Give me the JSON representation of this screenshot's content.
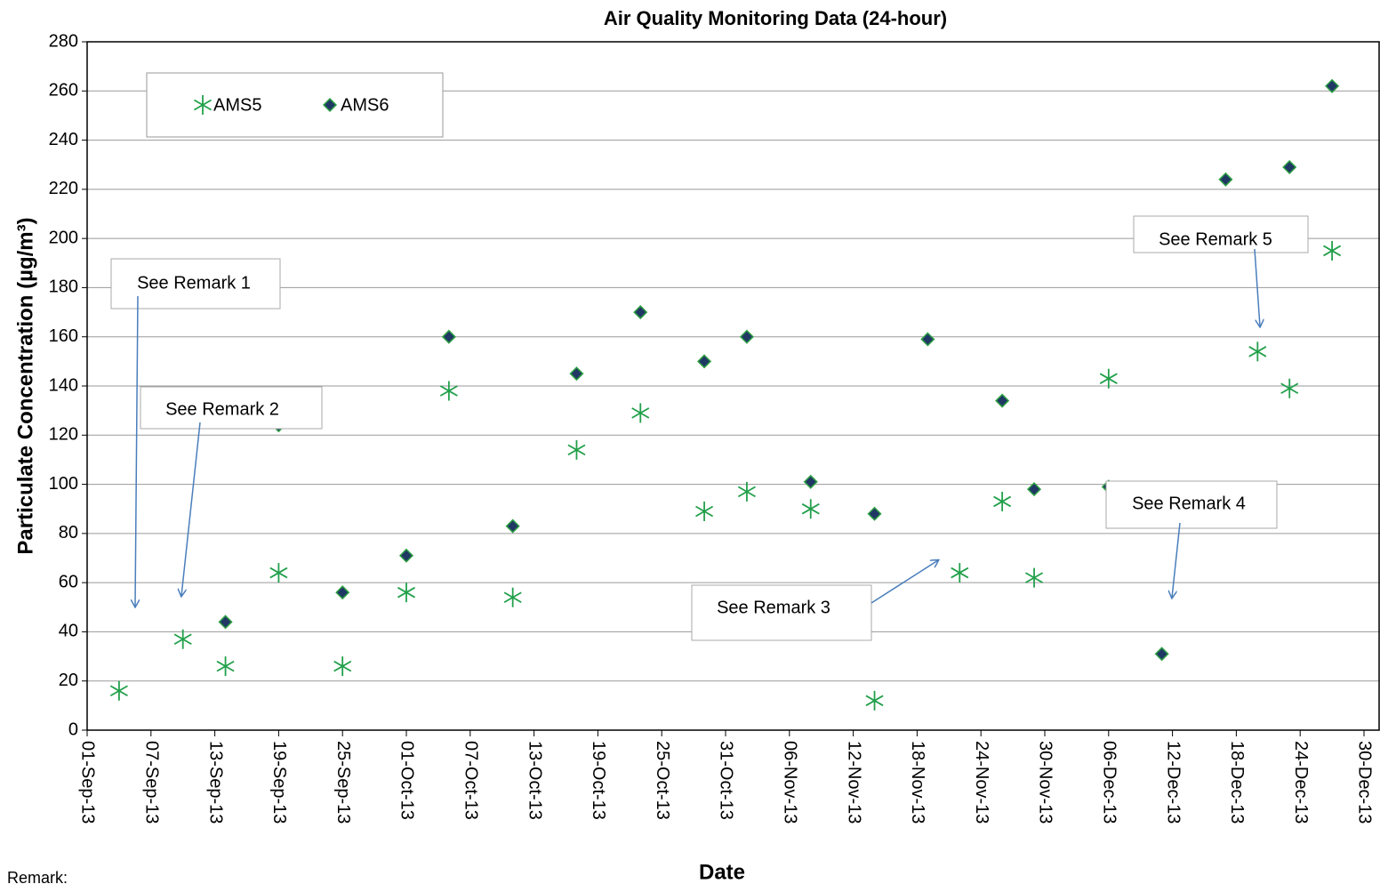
{
  "chart_data": {
    "type": "scatter",
    "title": "Air Quality Monitoring Data (24-hour)",
    "x_label": "Date",
    "y_label": "Particulate Concentration (µg/m³)",
    "xlim": [
      "2013-09-01",
      "2013-12-30"
    ],
    "xticks": [
      {
        "value": "2013-09-01",
        "label": "01-Sep-13"
      },
      {
        "value": "2013-09-07",
        "label": "07-Sep-13"
      },
      {
        "value": "2013-09-13",
        "label": "13-Sep-13"
      },
      {
        "value": "2013-09-19",
        "label": "19-Sep-13"
      },
      {
        "value": "2013-09-25",
        "label": "25-Sep-13"
      },
      {
        "value": "2013-10-01",
        "label": "01-Oct-13"
      },
      {
        "value": "2013-10-07",
        "label": "07-Oct-13"
      },
      {
        "value": "2013-10-13",
        "label": "13-Oct-13"
      },
      {
        "value": "2013-10-19",
        "label": "19-Oct-13"
      },
      {
        "value": "2013-10-25",
        "label": "25-Oct-13"
      },
      {
        "value": "2013-10-31",
        "label": "31-Oct-13"
      },
      {
        "value": "2013-11-06",
        "label": "06-Nov-13"
      },
      {
        "value": "2013-11-12",
        "label": "12-Nov-13"
      },
      {
        "value": "2013-11-18",
        "label": "18-Nov-13"
      },
      {
        "value": "2013-11-24",
        "label": "24-Nov-13"
      },
      {
        "value": "2013-11-30",
        "label": "30-Nov-13"
      },
      {
        "value": "2013-12-06",
        "label": "06-Dec-13"
      },
      {
        "value": "2013-12-12",
        "label": "12-Dec-13"
      },
      {
        "value": "2013-12-18",
        "label": "18-Dec-13"
      },
      {
        "value": "2013-12-24",
        "label": "24-Dec-13"
      },
      {
        "value": "2013-12-30",
        "label": "30-Dec-13"
      }
    ],
    "ylim": [
      0,
      280
    ],
    "yticks": [
      0,
      20,
      40,
      60,
      80,
      100,
      120,
      140,
      160,
      180,
      200,
      220,
      240,
      260,
      280
    ],
    "grid": true,
    "series": [
      {
        "name": "AMS5",
        "color": "#22a04b",
        "marker": "star",
        "x": [
          "2013-09-04",
          "2013-09-10",
          "2013-09-14",
          "2013-09-19",
          "2013-09-25",
          "2013-10-01",
          "2013-10-05",
          "2013-10-11",
          "2013-10-17",
          "2013-10-23",
          "2013-10-29",
          "2013-11-02",
          "2013-11-08",
          "2013-11-14",
          "2013-11-22",
          "2013-11-26",
          "2013-11-29",
          "2013-12-06",
          "2013-12-20",
          "2013-12-23",
          "2013-12-27"
        ],
        "values": [
          16,
          37,
          26,
          64,
          26,
          56,
          138,
          54,
          114,
          129,
          89,
          97,
          90,
          12,
          64,
          93,
          62,
          143,
          154,
          139,
          195
        ]
      },
      {
        "name": "AMS6",
        "color": "#1f3864",
        "marker": "diamond",
        "x": [
          "2013-09-14",
          "2013-09-19",
          "2013-09-25",
          "2013-10-01",
          "2013-10-05",
          "2013-10-11",
          "2013-10-17",
          "2013-10-23",
          "2013-10-29",
          "2013-11-02",
          "2013-11-08",
          "2013-11-14",
          "2013-11-19",
          "2013-11-26",
          "2013-11-29",
          "2013-12-06",
          "2013-12-11",
          "2013-12-17",
          "2013-12-23",
          "2013-12-27"
        ],
        "values": [
          44,
          124,
          56,
          71,
          160,
          83,
          145,
          170,
          150,
          160,
          101,
          88,
          159,
          134,
          98,
          99,
          31,
          224,
          229,
          262
        ]
      }
    ],
    "annotations": [
      "See Remark 1",
      "See Remark 2",
      "See Remark 3",
      "See Remark 4",
      "See Remark 5"
    ],
    "footnote": "Remark:"
  }
}
